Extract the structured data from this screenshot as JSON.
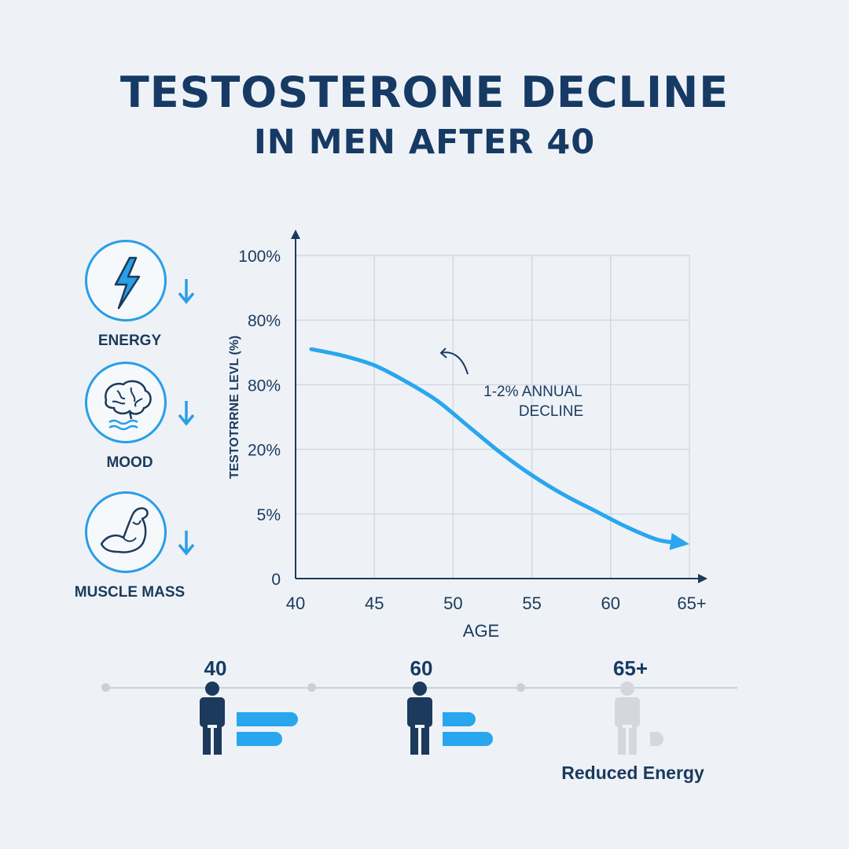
{
  "title": {
    "line1": "TESTOSTERONE DECLINE",
    "line2": "IN MEN AFTER 40"
  },
  "benefits": [
    {
      "label": "ENERGY",
      "icon": "lightning-bolt-icon",
      "trend": "down-arrow-icon"
    },
    {
      "label": "MOOD",
      "icon": "brain-icon",
      "trend": "down-arrow-icon"
    },
    {
      "label": "MUSCLE MASS",
      "icon": "flexed-arm-icon",
      "trend": "down-arrow-icon"
    }
  ],
  "chart_data": {
    "type": "line",
    "title": "",
    "xlabel": "AGE",
    "ylabel": "TESTOTRRNE LEVL (%)",
    "x_tick_labels": [
      "40",
      "45",
      "50",
      "55",
      "60",
      "65+"
    ],
    "y_tick_labels": [
      "0",
      "5%",
      "20%",
      "80%",
      "80%",
      "100%"
    ],
    "grid": true,
    "legend": "none",
    "series": [
      {
        "x": [
          41,
          43,
          45,
          47,
          49,
          51,
          53,
          55,
          57,
          59,
          61,
          63,
          64.5
        ],
        "y_tick_position": [
          3.55,
          3.45,
          3.3,
          3.05,
          2.75,
          2.35,
          1.95,
          1.6,
          1.3,
          1.05,
          0.8,
          0.6,
          0.55
        ]
      }
    ],
    "annotation": {
      "line1": "1-2% ANNUAL",
      "line2": "DECLINE"
    },
    "colors": {
      "line": "#2aa6ee",
      "axis": "#1b3a5c",
      "grid": "#d3d9e1"
    }
  },
  "timeline": {
    "stages": [
      {
        "age": "40",
        "bars": 2
      },
      {
        "age": "60",
        "bars": 2
      },
      {
        "age": "65+",
        "bars": 1
      }
    ],
    "caption": "Reduced Energy"
  },
  "colors": {
    "title": "#163a63",
    "accent": "#2aa6ee",
    "person_dark": "#1b3a5c",
    "person_faded": "#d4d8de"
  }
}
